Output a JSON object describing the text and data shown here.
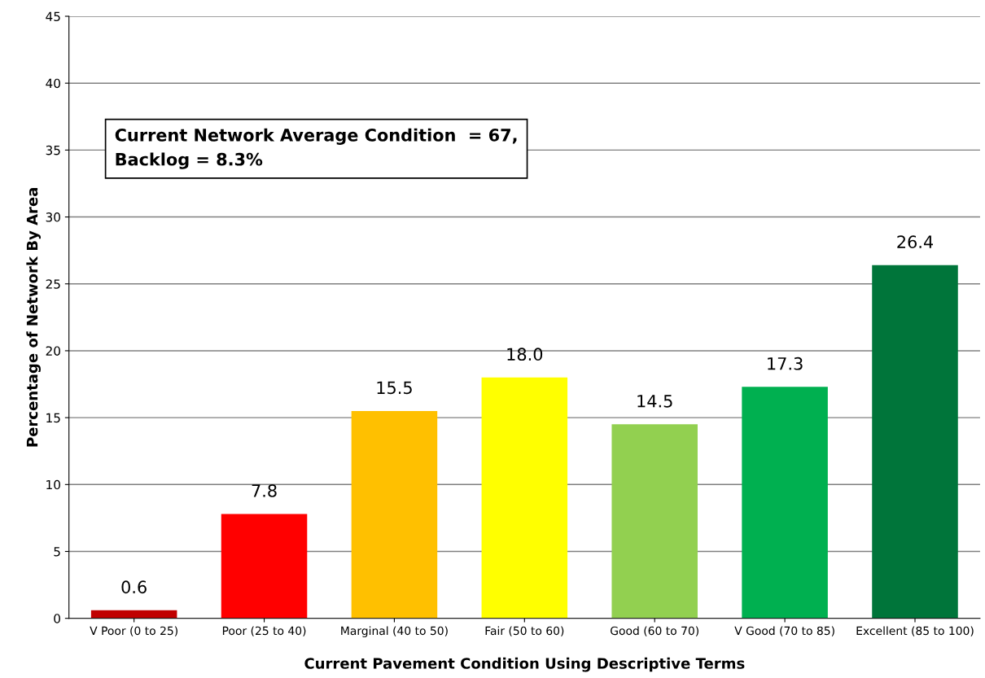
{
  "chart_data": {
    "type": "bar",
    "xlabel": "Current Pavement Condition Using Descriptive Terms",
    "ylabel": "Percentage of Network By Area",
    "categories": [
      "V Poor (0 to 25)",
      "Poor (25 to 40)",
      "Marginal (40 to 50)",
      "Fair (50 to 60)",
      "Good (60 to 70)",
      "V Good (70 to 85)",
      "Excellent (85 to 100)"
    ],
    "values": [
      0.6,
      7.8,
      15.5,
      18.0,
      14.5,
      17.3,
      26.4
    ],
    "value_labels": [
      "0.6",
      "7.8",
      "15.5",
      "18.0",
      "14.5",
      "17.3",
      "26.4"
    ],
    "colors": [
      "#c00000",
      "#ff0000",
      "#ffc000",
      "#ffff00",
      "#92d050",
      "#00b050",
      "#00753a"
    ],
    "ylim": [
      0,
      45
    ],
    "yticks": [
      0,
      5,
      10,
      15,
      20,
      25,
      30,
      35,
      40,
      45
    ],
    "grid": "y",
    "annotations": [
      "Current Network Average Condition  = 67,\nBacklog = 8.3%"
    ]
  }
}
